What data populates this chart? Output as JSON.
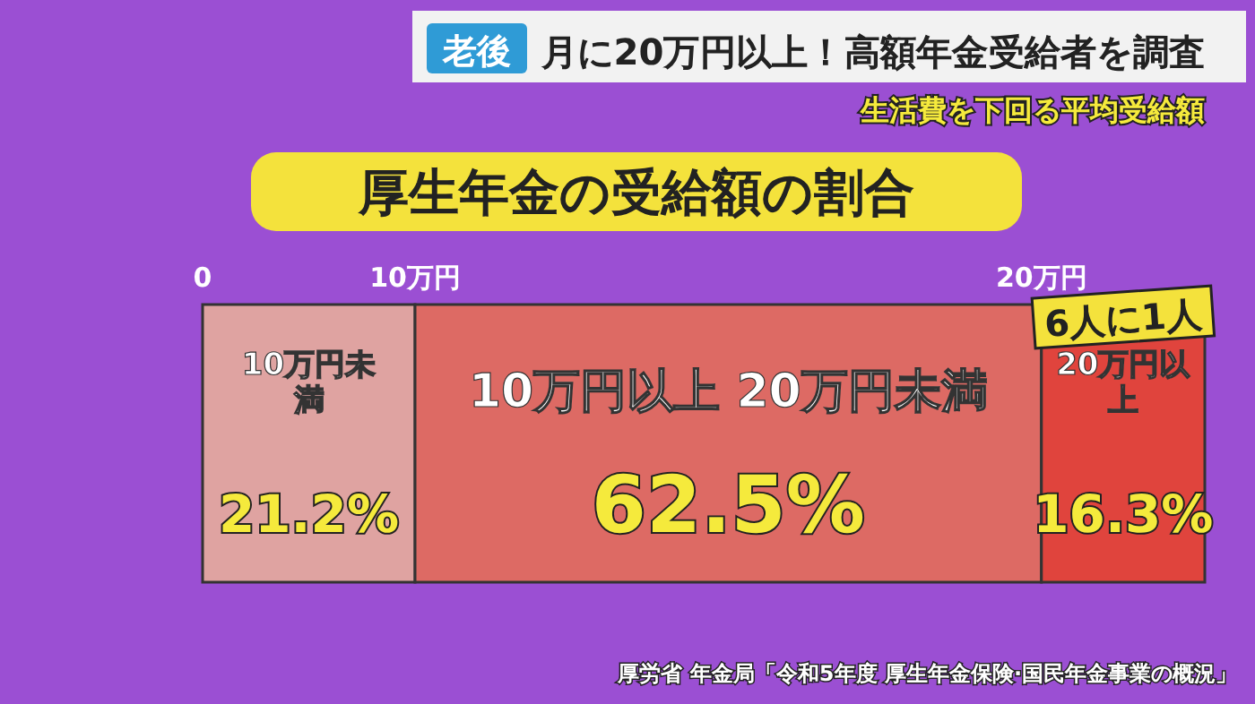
{
  "chart_data": {
    "type": "bar",
    "orientation": "horizontal",
    "stacked": true,
    "title": "厚生年金の受給額の割合",
    "categories": [
      null
    ],
    "xlim": [
      0,
      100
    ],
    "series": [
      {
        "name": "10万円未満",
        "color": "#dfa3a1",
        "values": [
          21.2
        ],
        "value_labels": [
          "21.2%"
        ]
      },
      {
        "name": "10万円以上 20万円未満",
        "color": "#dd6a64",
        "values": [
          62.5
        ],
        "value_labels": [
          "62.5%"
        ]
      },
      {
        "name": "20万円以上",
        "color": "#e0443d",
        "values": [
          16.3
        ],
        "value_labels": [
          "16.3%"
        ]
      }
    ],
    "annotations": [
      "老後",
      "月に20万円以上！高額年金受給者を調査",
      "生活費を下回る平均受給額",
      "6人に1人",
      "厚労省 年金局「令和5年度 厚生年金保険·国民年金事業の概況」",
      "0",
      "10万円",
      "20万円"
    ],
    "legend": false
  }
}
